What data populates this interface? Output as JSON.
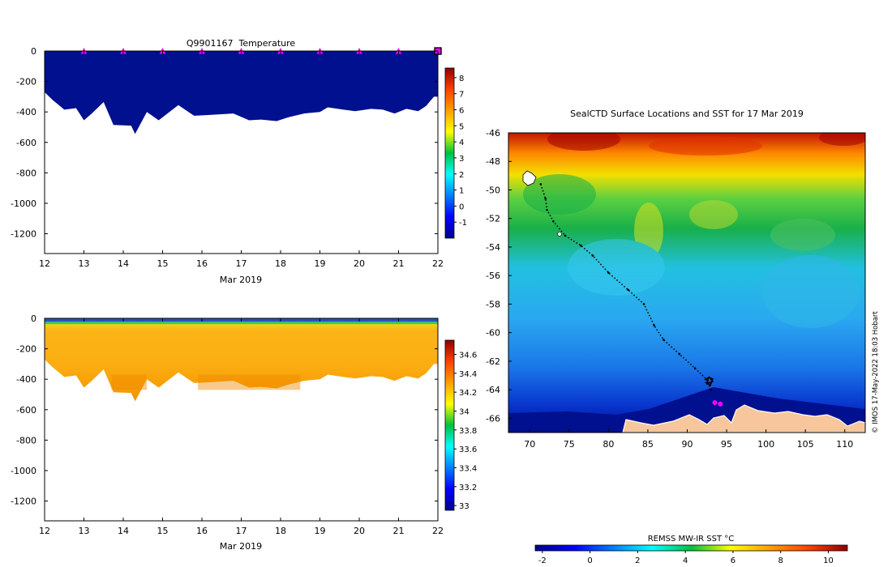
{
  "chart_data": [
    {
      "type": "heatmap",
      "title": "Q9901167  Temperature",
      "xlabel": "Mar 2019",
      "ylabel": "",
      "x_ticks": [
        "12",
        "13",
        "14",
        "15",
        "16",
        "17",
        "18",
        "19",
        "20",
        "21",
        "22"
      ],
      "xlim": [
        12,
        22
      ],
      "y_ticks": [
        "0",
        "-200",
        "-400",
        "-600",
        "-800",
        "-1000",
        "-1200"
      ],
      "ylim": [
        -1330,
        0
      ],
      "profile_marker_days": [
        13,
        14,
        15,
        16,
        17,
        18,
        19,
        20,
        21
      ],
      "current_marker_day": 22,
      "colorbar_ticks": [
        "8",
        "7",
        "6",
        "5",
        "4",
        "3",
        "2",
        "1",
        "0",
        "-1"
      ],
      "colorbar_range": [
        -2,
        8.6
      ],
      "fill_color": "#00108f",
      "profile_depths": [
        {
          "day": 12.0,
          "depth": -270
        },
        {
          "day": 12.2,
          "depth": -320
        },
        {
          "day": 12.5,
          "depth": -385
        },
        {
          "day": 12.8,
          "depth": -375
        },
        {
          "day": 13.0,
          "depth": -455
        },
        {
          "day": 13.2,
          "depth": -410
        },
        {
          "day": 13.5,
          "depth": -335
        },
        {
          "day": 13.75,
          "depth": -485
        },
        {
          "day": 14.2,
          "depth": -490
        },
        {
          "day": 14.3,
          "depth": -545
        },
        {
          "day": 14.6,
          "depth": -400
        },
        {
          "day": 14.9,
          "depth": -455
        },
        {
          "day": 15.4,
          "depth": -355
        },
        {
          "day": 15.8,
          "depth": -425
        },
        {
          "day": 16.2,
          "depth": -420
        },
        {
          "day": 16.5,
          "depth": -415
        },
        {
          "day": 16.8,
          "depth": -410
        },
        {
          "day": 17.2,
          "depth": -455
        },
        {
          "day": 17.5,
          "depth": -450
        },
        {
          "day": 17.9,
          "depth": -460
        },
        {
          "day": 18.2,
          "depth": -435
        },
        {
          "day": 18.6,
          "depth": -410
        },
        {
          "day": 19.0,
          "depth": -400
        },
        {
          "day": 19.2,
          "depth": -370
        },
        {
          "day": 19.6,
          "depth": -385
        },
        {
          "day": 19.9,
          "depth": -395
        },
        {
          "day": 20.3,
          "depth": -380
        },
        {
          "day": 20.6,
          "depth": -385
        },
        {
          "day": 20.9,
          "depth": -410
        },
        {
          "day": 21.2,
          "depth": -380
        },
        {
          "day": 21.5,
          "depth": -395
        },
        {
          "day": 21.7,
          "depth": -360
        },
        {
          "day": 21.9,
          "depth": -300
        },
        {
          "day": 22.0,
          "depth": -300
        }
      ]
    },
    {
      "type": "heatmap",
      "title": "",
      "xlabel": "Mar 2019",
      "ylabel": "",
      "x_ticks": [
        "12",
        "13",
        "14",
        "15",
        "16",
        "17",
        "18",
        "19",
        "20",
        "21",
        "22"
      ],
      "xlim": [
        12,
        22
      ],
      "y_ticks": [
        "0",
        "-200",
        "-400",
        "-600",
        "-800",
        "-1000",
        "-1200"
      ],
      "ylim": [
        -1330,
        0
      ],
      "colorbar_ticks": [
        "34.6",
        "34.4",
        "34.2",
        "34",
        "33.8",
        "33.6",
        "33.4",
        "33.2",
        "33"
      ],
      "colorbar_range": [
        32.95,
        34.75
      ],
      "surface_salinity": 33.0,
      "deep_salinity": 34.35,
      "profile_depths": [
        {
          "day": 12.0,
          "depth": -270
        },
        {
          "day": 12.2,
          "depth": -320
        },
        {
          "day": 12.5,
          "depth": -385
        },
        {
          "day": 12.8,
          "depth": -375
        },
        {
          "day": 13.0,
          "depth": -455
        },
        {
          "day": 13.2,
          "depth": -410
        },
        {
          "day": 13.5,
          "depth": -335
        },
        {
          "day": 13.75,
          "depth": -485
        },
        {
          "day": 14.2,
          "depth": -490
        },
        {
          "day": 14.3,
          "depth": -545
        },
        {
          "day": 14.6,
          "depth": -400
        },
        {
          "day": 14.9,
          "depth": -455
        },
        {
          "day": 15.4,
          "depth": -355
        },
        {
          "day": 15.8,
          "depth": -425
        },
        {
          "day": 16.2,
          "depth": -420
        },
        {
          "day": 16.5,
          "depth": -415
        },
        {
          "day": 16.8,
          "depth": -410
        },
        {
          "day": 17.2,
          "depth": -455
        },
        {
          "day": 17.5,
          "depth": -450
        },
        {
          "day": 17.9,
          "depth": -460
        },
        {
          "day": 18.2,
          "depth": -435
        },
        {
          "day": 18.6,
          "depth": -410
        },
        {
          "day": 19.0,
          "depth": -400
        },
        {
          "day": 19.2,
          "depth": -370
        },
        {
          "day": 19.6,
          "depth": -385
        },
        {
          "day": 19.9,
          "depth": -395
        },
        {
          "day": 20.3,
          "depth": -380
        },
        {
          "day": 20.6,
          "depth": -385
        },
        {
          "day": 20.9,
          "depth": -410
        },
        {
          "day": 21.2,
          "depth": -380
        },
        {
          "day": 21.5,
          "depth": -395
        },
        {
          "day": 21.7,
          "depth": -360
        },
        {
          "day": 21.9,
          "depth": -300
        },
        {
          "day": 22.0,
          "depth": -300
        }
      ]
    },
    {
      "type": "heatmap",
      "title": "SealCTD Surface Locations and SST for 17 Mar 2019",
      "xlabel": "",
      "ylabel": "",
      "x_ticks": [
        "70",
        "75",
        "80",
        "85",
        "90",
        "95",
        "100",
        "105",
        "110"
      ],
      "xlim": [
        67.3,
        112.6
      ],
      "y_ticks": [
        "-46",
        "-48",
        "-50",
        "-52",
        "-54",
        "-56",
        "-58",
        "-60",
        "-62",
        "-64",
        "-66"
      ],
      "ylim": [
        -67.0,
        -46.0
      ],
      "colorbar_label": "REMSS MW-IR SST °C",
      "colorbar_ticks": [
        "-2",
        "0",
        "2",
        "4",
        "6",
        "8",
        "10"
      ],
      "colorbar_range": [
        -2.3,
        10.8
      ],
      "track": [
        [
          71.4,
          -49.6
        ],
        [
          72.0,
          -50.6
        ],
        [
          72.2,
          -51.4
        ],
        [
          73.0,
          -52.2
        ],
        [
          74.5,
          -53.2
        ],
        [
          76.5,
          -53.9
        ],
        [
          78.0,
          -54.6
        ],
        [
          80.0,
          -55.8
        ],
        [
          82.5,
          -57.0
        ],
        [
          84.5,
          -58.0
        ],
        [
          85.8,
          -59.5
        ],
        [
          87.0,
          -60.5
        ],
        [
          89.0,
          -61.5
        ],
        [
          91.0,
          -62.5
        ],
        [
          92.5,
          -63.3
        ],
        [
          93.0,
          -64.0
        ]
      ],
      "current_positions": [
        [
          93.5,
          -64.9
        ],
        [
          94.2,
          -65.0
        ]
      ],
      "copyright": "© IMOS 17-May-2022 18:03 Hobart"
    }
  ]
}
